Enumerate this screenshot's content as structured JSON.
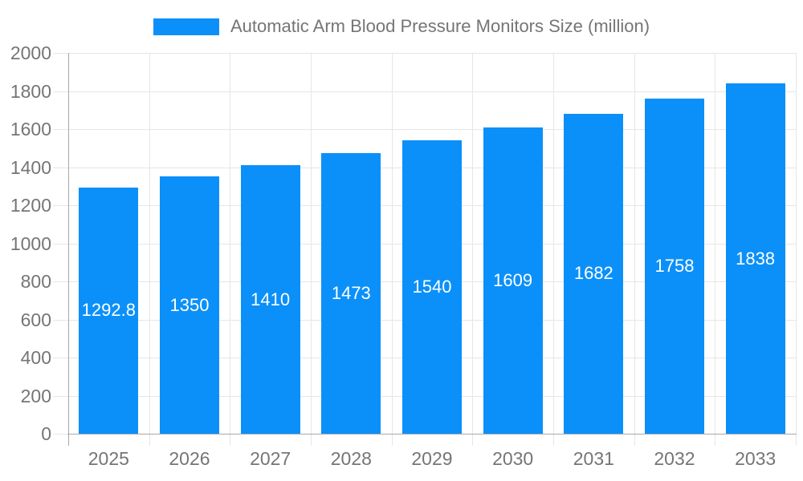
{
  "legend": {
    "label": "Automatic Arm Blood Pressure Monitors Size (million)"
  },
  "chart_data": {
    "type": "bar",
    "title": "Automatic Arm Blood Pressure Monitors Size (million)",
    "categories": [
      "2025",
      "2026",
      "2027",
      "2028",
      "2029",
      "2030",
      "2031",
      "2032",
      "2033"
    ],
    "values": [
      1292.8,
      1350,
      1410,
      1473,
      1540,
      1609,
      1682,
      1758,
      1838
    ],
    "value_labels": [
      "1292.8",
      "1350",
      "1410",
      "1473",
      "1540",
      "1609",
      "1682",
      "1758",
      "1838"
    ],
    "xlabel": "",
    "ylabel": "",
    "ylim": [
      0,
      2000
    ],
    "ytick_step": 200,
    "ytick_labels": [
      "0",
      "200",
      "400",
      "600",
      "800",
      "1000",
      "1200",
      "1400",
      "1600",
      "1800",
      "2000"
    ],
    "grid": true,
    "legend_position": "top",
    "value_label_position": "inside-middle",
    "colors": {
      "bar": "#0b90f9",
      "title_text": "#757575",
      "axis_text": "#757575",
      "value_text": "#ffffff",
      "grid_line": "#e6e6e6",
      "axis_line": "#a9a9a9",
      "background": "#ffffff"
    }
  }
}
